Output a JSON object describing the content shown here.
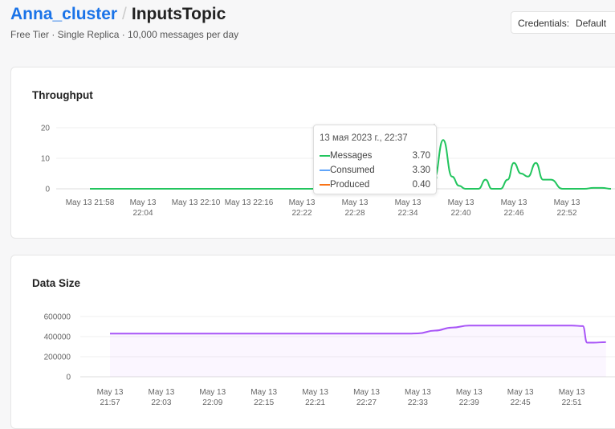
{
  "header": {
    "cluster": "Anna_cluster",
    "separator": "/",
    "topic": "InputsTopic",
    "subtitle": "Free Tier · Single Replica · 10,000 messages per day",
    "credentials_label": "Credentials:",
    "credentials_value": "Default"
  },
  "throughput": {
    "title": "Throughput",
    "tooltip": {
      "date": "13 мая 2023 г., 22:37",
      "items": [
        {
          "label": "Messages",
          "value": "3.70",
          "color": "#22c55e"
        },
        {
          "label": "Consumed",
          "value": "3.30",
          "color": "#60a5fa"
        },
        {
          "label": "Produced",
          "value": "0.40",
          "color": "#f97316"
        }
      ]
    }
  },
  "datasize": {
    "title": "Data Size"
  },
  "chart_data": [
    {
      "type": "line",
      "title": "Throughput",
      "yticks": [
        "0",
        "10",
        "20"
      ],
      "ylim": [
        0,
        20
      ],
      "xticks": [
        [
          "May 13 21:58",
          ""
        ],
        [
          "May 13",
          "22:04"
        ],
        [
          "May 13 22:10",
          ""
        ],
        [
          "May 13 22:16",
          ""
        ],
        [
          "May 13",
          "22:22"
        ],
        [
          "May 13",
          "22:28"
        ],
        [
          "May 13",
          "22:34"
        ],
        [
          "May 13",
          "22:40"
        ],
        [
          "May 13",
          "22:46"
        ],
        [
          "May 13",
          "22:52"
        ]
      ],
      "xtick_minutes": [
        0,
        6,
        12,
        18,
        24,
        30,
        36,
        42,
        48,
        54
      ],
      "series": [
        {
          "name": "Messages",
          "color": "#22c55e",
          "x": [
            0,
            10,
            20,
            30,
            38,
            38.6,
            39,
            40,
            41,
            41.8,
            42.5,
            44,
            44.8,
            45.5,
            46.5,
            47.3,
            48,
            48.8,
            49.6,
            50.5,
            51.3,
            52.2,
            53.5,
            54,
            56,
            57,
            58,
            59
          ],
          "y": [
            0,
            0,
            0,
            0,
            0,
            2,
            3.7,
            16,
            4,
            1,
            0,
            0,
            3,
            0,
            0,
            3,
            8.5,
            5,
            4,
            8.5,
            3,
            3,
            0,
            0,
            0,
            0.3,
            0.3,
            0
          ]
        }
      ]
    },
    {
      "type": "line",
      "title": "Data Size",
      "yticks": [
        "0",
        "200000",
        "400000",
        "600000"
      ],
      "ylim": [
        0,
        600000
      ],
      "xticks": [
        [
          "May 13",
          "21:57"
        ],
        [
          "May 13",
          "22:03"
        ],
        [
          "May 13",
          "22:09"
        ],
        [
          "May 13",
          "22:15"
        ],
        [
          "May 13",
          "22:21"
        ],
        [
          "May 13",
          "22:27"
        ],
        [
          "May 13",
          "22:33"
        ],
        [
          "May 13",
          "22:39"
        ],
        [
          "May 13",
          "22:45"
        ],
        [
          "May 13",
          "22:51"
        ]
      ],
      "xtick_minutes": [
        0,
        6,
        12,
        18,
        24,
        30,
        36,
        42,
        48,
        54
      ],
      "series": [
        {
          "name": "Data Size",
          "color": "#a855f7",
          "x": [
            0,
            20,
            35,
            36,
            38,
            40,
            42,
            48,
            54,
            55.3,
            55.8,
            56.5,
            58
          ],
          "y": [
            430000,
            430000,
            430000,
            432000,
            460000,
            490000,
            510000,
            510000,
            510000,
            505000,
            340000,
            340000,
            345000
          ]
        }
      ]
    }
  ]
}
